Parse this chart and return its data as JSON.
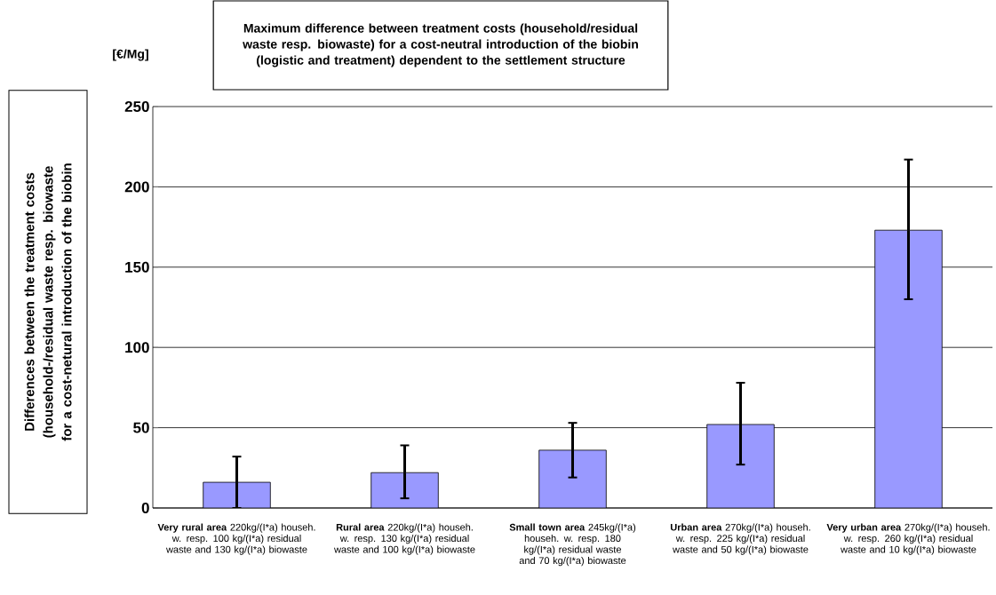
{
  "chart_data": {
    "type": "bar",
    "title": "Maximum difference between treatment costs (household/residual waste resp. biowaste) for a cost-neutral introduction of the biobin (logistic and treatment) dependent to the settlement structure",
    "ylabel": "Differences between the treatment costs (household-/residual waste resp. biowaste for a cost-netural introduction of the biobin",
    "annotations": [
      "[€/Mg]"
    ],
    "categories": [
      "**Very rural area** 220kg/(I*a) househ. w. resp. 100 kg/(I*a) residual waste and 130 kg/(I*a) biowaste",
      "**Rural area** 220kg/(I*a) househ. w. resp. 130 kg/(I*a) residual waste and 100 kg/(I*a) biowaste",
      "**Small town area** 245kg/(I*a) househ. w. resp. 180 kg/(I*a) residual waste and 70 kg/(I*a) biowaste",
      "**Urban area** 270kg/(I*a) househ. w. resp. 225 kg/(I*a) residual waste and 50 kg/(I*a) biowaste",
      "**Very urban area** 270kg/(I*a) househ. w. resp. 260 kg/(I*a) residual waste and 10 kg/(I*a) biowaste"
    ],
    "values": [
      16,
      22,
      36,
      52,
      173
    ],
    "errors": [
      [
        0,
        32
      ],
      [
        6,
        39
      ],
      [
        19,
        53
      ],
      [
        27,
        78
      ],
      [
        130,
        217
      ]
    ],
    "color": "#9999ff",
    "ylim": [
      0,
      250
    ],
    "yticks": [
      0,
      50,
      100,
      150,
      200,
      250
    ],
    "grid": "y"
  }
}
